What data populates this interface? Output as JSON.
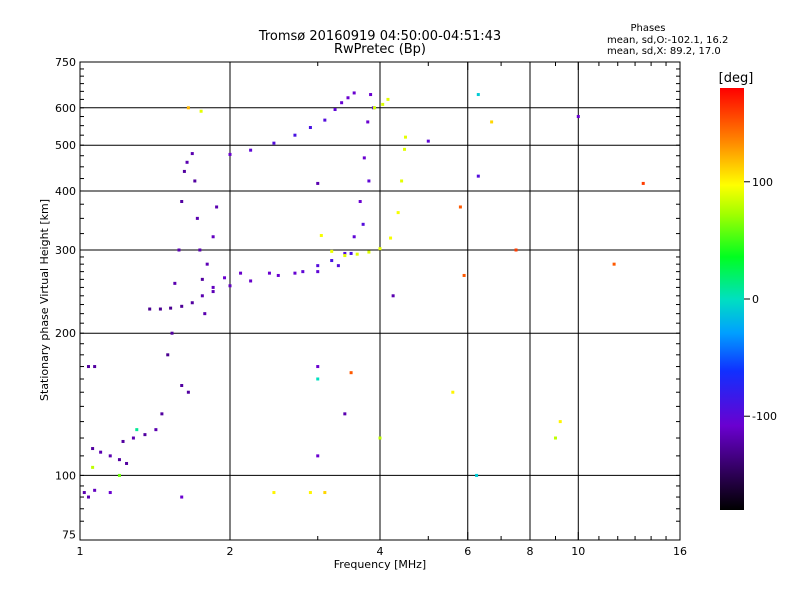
{
  "chart_data": {
    "type": "scatter",
    "title": "Tromsø 20160919 04:50:00-04:51:43",
    "subtitle": "RwPretec (Bp)",
    "phases": {
      "heading": "Phases",
      "line_o": "mean, sd,O:-102.1, 16.2",
      "line_x": "mean, sd,X:  89.2, 17.0"
    },
    "xlabel": "Frequency [MHz]",
    "ylabel": "Stationary phase Virtual Height [km]",
    "xscale": "log",
    "yscale": "log",
    "xlim": [
      1,
      16
    ],
    "ylim": [
      73,
      750
    ],
    "xticks": [
      {
        "value": 1,
        "label": "1"
      },
      {
        "value": 2,
        "label": "2"
      },
      {
        "value": 4,
        "label": "4"
      },
      {
        "value": 6,
        "label": "6"
      },
      {
        "value": 8,
        "label": "8"
      },
      {
        "value": 10,
        "label": "10"
      },
      {
        "value": 16,
        "label": "16"
      }
    ],
    "yticks": [
      {
        "value": 75,
        "label": "75"
      },
      {
        "value": 100,
        "label": "100"
      },
      {
        "value": 200,
        "label": "200"
      },
      {
        "value": 300,
        "label": "300"
      },
      {
        "value": 400,
        "label": "400"
      },
      {
        "value": 500,
        "label": "500"
      },
      {
        "value": 600,
        "label": "600"
      },
      {
        "value": 750,
        "label": "750"
      }
    ],
    "xgrid": [
      2,
      4,
      6,
      8,
      10
    ],
    "ygrid": [
      100,
      200,
      300,
      400,
      500,
      600
    ],
    "grid": true,
    "colorbar": {
      "label": "[deg]",
      "range": [
        -180,
        180
      ],
      "ticks": [
        {
          "value": 100,
          "label": "100"
        },
        {
          "value": 0,
          "label": "0"
        },
        {
          "value": -100,
          "label": "-100"
        }
      ]
    },
    "series": [
      {
        "values": [
          [
            1.38,
            225,
            -130
          ],
          [
            1.45,
            225,
            -130
          ],
          [
            1.52,
            226,
            -130
          ],
          [
            1.6,
            228,
            -128
          ],
          [
            1.68,
            232,
            -125
          ],
          [
            1.76,
            240,
            -120
          ],
          [
            1.85,
            245,
            -118
          ],
          [
            2.0,
            252,
            -115
          ],
          [
            2.2,
            258,
            -112
          ],
          [
            2.5,
            265,
            -110
          ],
          [
            2.8,
            270,
            -105
          ],
          [
            3.0,
            278,
            -100
          ],
          [
            3.2,
            285,
            -95
          ],
          [
            3.4,
            295,
            -100
          ],
          [
            3.55,
            320,
            -105
          ],
          [
            3.65,
            380,
            -110
          ],
          [
            3.72,
            470,
            -110
          ],
          [
            3.78,
            560,
            -110
          ],
          [
            3.83,
            640,
            -110
          ],
          [
            3.88,
            600,
            -105
          ]
        ]
      },
      {
        "values": [
          [
            1.85,
            250,
            -115
          ],
          [
            1.95,
            262,
            -110
          ],
          [
            2.1,
            268,
            -112
          ],
          [
            2.4,
            268,
            -110
          ],
          [
            2.7,
            268,
            -108
          ],
          [
            3.0,
            270,
            -105
          ],
          [
            3.3,
            278,
            -100
          ],
          [
            3.5,
            295,
            -95
          ],
          [
            3.7,
            340,
            -100
          ],
          [
            3.8,
            420,
            -105
          ]
        ]
      },
      {
        "values": [
          [
            2.0,
            478,
            -110
          ],
          [
            2.2,
            488,
            -105
          ],
          [
            2.45,
            505,
            -100
          ],
          [
            2.7,
            525,
            -95
          ],
          [
            2.9,
            545,
            -95
          ],
          [
            3.1,
            565,
            -100
          ],
          [
            3.25,
            595,
            -105
          ],
          [
            3.35,
            615,
            -108
          ],
          [
            3.45,
            630,
            -110
          ],
          [
            3.55,
            645,
            -110
          ]
        ]
      },
      {
        "values": [
          [
            3.05,
            322,
            95
          ],
          [
            3.2,
            298,
            92
          ],
          [
            3.4,
            292,
            90
          ],
          [
            3.6,
            294,
            90
          ],
          [
            3.8,
            297,
            88
          ],
          [
            4.0,
            302,
            90
          ],
          [
            4.2,
            318,
            95
          ],
          [
            4.35,
            360,
            95
          ],
          [
            4.42,
            420,
            90
          ],
          [
            4.48,
            490,
            90
          ],
          [
            4.5,
            520,
            90
          ],
          [
            3.9,
            600,
            85
          ],
          [
            4.05,
            610,
            88
          ],
          [
            4.15,
            625,
            90
          ]
        ]
      },
      {
        "values": [
          [
            1.04,
            170,
            -125
          ],
          [
            1.07,
            170,
            -125
          ],
          [
            1.06,
            114,
            -125
          ],
          [
            1.1,
            112,
            -120
          ],
          [
            1.15,
            110,
            -120
          ],
          [
            1.2,
            108,
            -125
          ],
          [
            1.24,
            106,
            -125
          ],
          [
            1.22,
            118,
            -125
          ],
          [
            1.28,
            120,
            -120
          ],
          [
            1.35,
            122,
            -125
          ],
          [
            1.42,
            125,
            -120
          ],
          [
            1.46,
            135,
            -125
          ],
          [
            1.5,
            180,
            -130
          ],
          [
            1.53,
            200,
            -125
          ],
          [
            1.55,
            255,
            -120
          ],
          [
            1.58,
            300,
            -120
          ],
          [
            1.6,
            380,
            -125
          ],
          [
            1.62,
            440,
            -125
          ],
          [
            1.64,
            460,
            -120
          ],
          [
            1.68,
            480,
            -120
          ],
          [
            1.7,
            420,
            -125
          ],
          [
            1.72,
            350,
            -120
          ],
          [
            1.74,
            300,
            -120
          ],
          [
            1.76,
            260,
            -125
          ],
          [
            1.78,
            220,
            -120
          ],
          [
            1.8,
            280,
            -118
          ],
          [
            1.85,
            320,
            -115
          ],
          [
            1.88,
            370,
            -120
          ],
          [
            1.6,
            155,
            -125
          ],
          [
            1.65,
            150,
            -125
          ]
        ]
      },
      {
        "values": [
          [
            1.02,
            92,
            -120
          ],
          [
            1.04,
            90,
            -120
          ],
          [
            1.07,
            93,
            -115
          ],
          [
            1.06,
            104,
            80
          ],
          [
            1.15,
            92,
            -110
          ],
          [
            1.2,
            100,
            60
          ],
          [
            1.6,
            90,
            -110
          ],
          [
            1.3,
            125,
            10
          ],
          [
            1.65,
            600,
            120
          ],
          [
            1.75,
            590,
            90
          ],
          [
            2.45,
            92,
            100
          ],
          [
            2.9,
            92,
            100
          ],
          [
            3.1,
            92,
            110
          ],
          [
            3.0,
            170,
            -110
          ],
          [
            3.0,
            160,
            0
          ],
          [
            3.0,
            110,
            -110
          ],
          [
            3.0,
            415,
            -120
          ],
          [
            3.4,
            135,
            -120
          ],
          [
            3.5,
            165,
            150
          ],
          [
            4.0,
            120,
            80
          ],
          [
            4.25,
            240,
            -120
          ],
          [
            5.0,
            510,
            -105
          ],
          [
            5.6,
            150,
            100
          ],
          [
            5.8,
            370,
            150
          ],
          [
            5.9,
            265,
            150
          ],
          [
            6.3,
            640,
            -10
          ],
          [
            6.3,
            430,
            -100
          ],
          [
            6.25,
            100,
            -10
          ],
          [
            6.7,
            560,
            110
          ],
          [
            7.5,
            300,
            160
          ],
          [
            9.0,
            120,
            80
          ],
          [
            9.2,
            130,
            100
          ],
          [
            10.0,
            575,
            -110
          ],
          [
            11.8,
            280,
            150
          ],
          [
            13.5,
            415,
            160
          ]
        ]
      }
    ]
  }
}
